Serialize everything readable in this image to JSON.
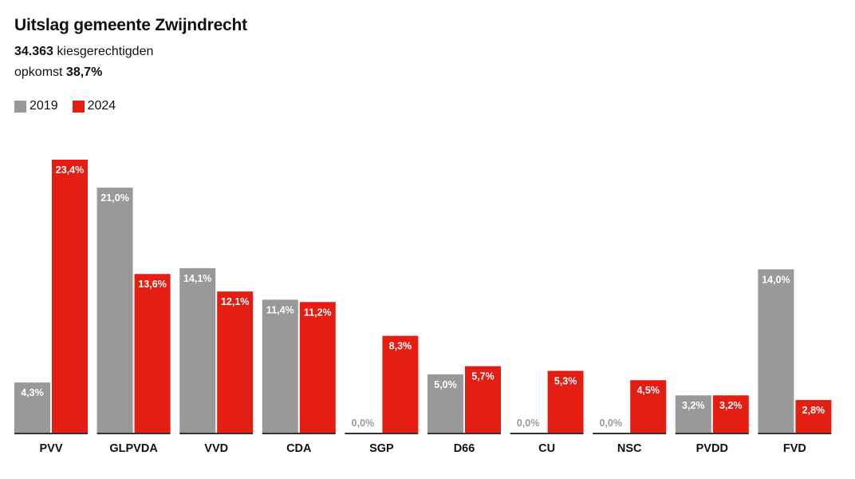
{
  "header": {
    "title": "Uitslag gemeente Zwijndrecht",
    "voters_value": "34.363",
    "voters_label": "kiesgerechtigden",
    "turnout_label": "opkomst",
    "turnout_value": "38,7%"
  },
  "colors": {
    "2019": "#999999",
    "2024": "#e41e13",
    "zero_label": "#999999",
    "baseline": "#333333"
  },
  "chart_data": {
    "type": "bar",
    "categories": [
      "PVV",
      "GLPVDA",
      "VVD",
      "CDA",
      "SGP",
      "D66",
      "CU",
      "NSC",
      "PVDD",
      "FVD"
    ],
    "series": [
      {
        "name": "2019",
        "values": [
          4.3,
          21.0,
          14.1,
          11.4,
          0.0,
          5.0,
          0.0,
          0.0,
          3.2,
          14.0
        ],
        "labels": [
          "4,3%",
          "21,0%",
          "14,1%",
          "11,4%",
          "0,0%",
          "5,0%",
          "0,0%",
          "0,0%",
          "3,2%",
          "14,0%"
        ]
      },
      {
        "name": "2024",
        "values": [
          23.4,
          13.6,
          12.1,
          11.2,
          8.3,
          5.7,
          5.3,
          4.5,
          3.2,
          2.8
        ],
        "labels": [
          "23,4%",
          "13,6%",
          "12,1%",
          "11,2%",
          "8,3%",
          "5,7%",
          "5,3%",
          "4,5%",
          "3,2%",
          "2,8%"
        ]
      }
    ],
    "legend": "top-left",
    "grid": false,
    "ylim": [
      0,
      23.4
    ]
  }
}
